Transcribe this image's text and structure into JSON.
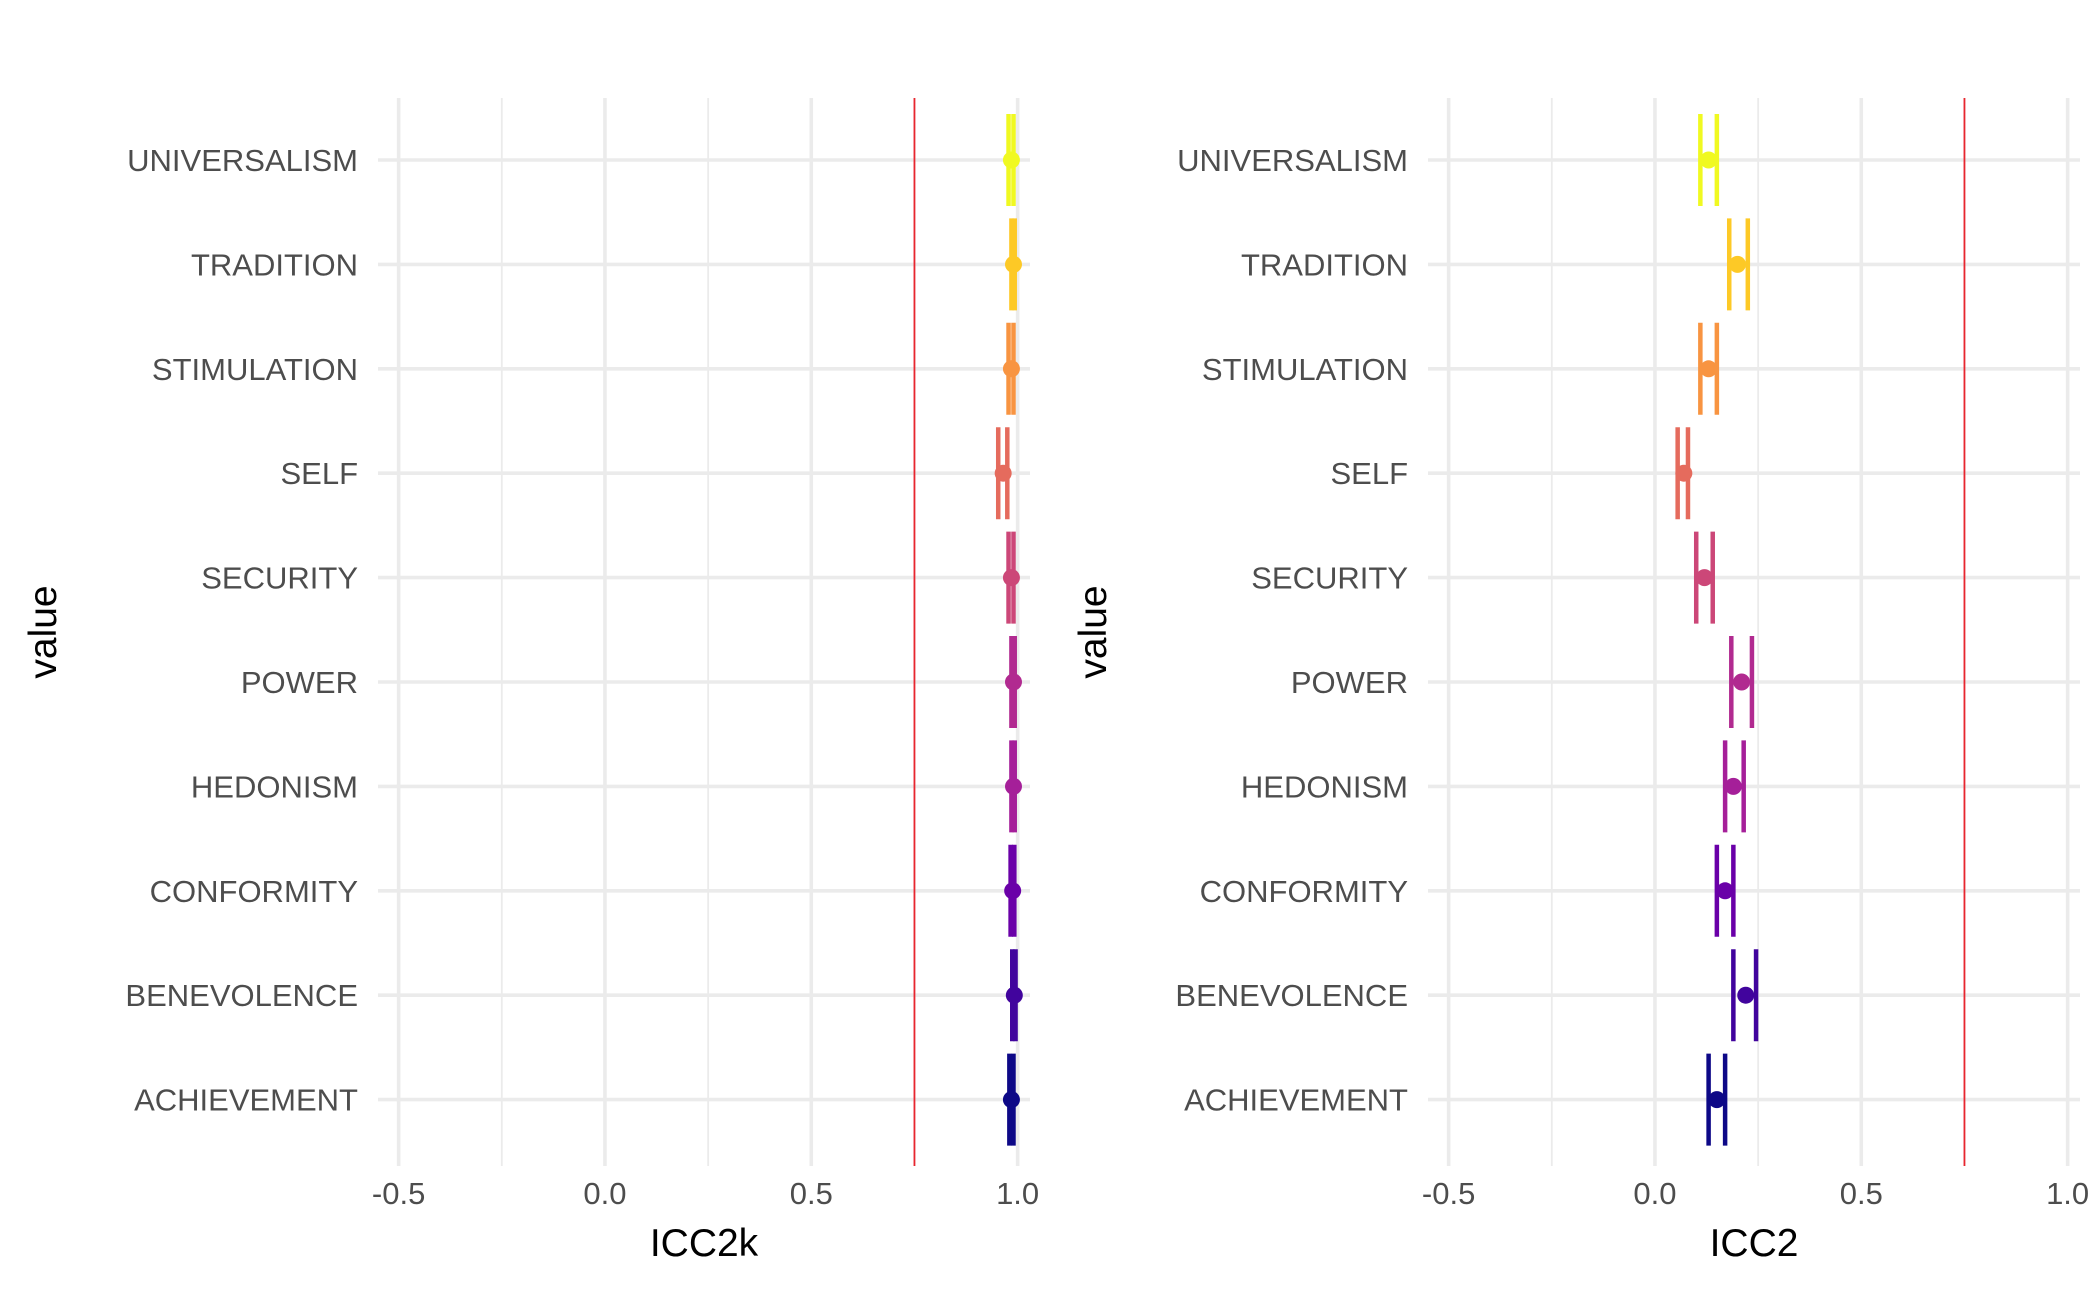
{
  "chart_data": [
    {
      "type": "errorbar",
      "xlabel": "ICC2k",
      "ylabel": "value",
      "xlim": [
        -0.55,
        1.03
      ],
      "x_ticks": [
        -0.5,
        0.0,
        0.5,
        1.0
      ],
      "x_tick_labels": [
        "-0.5",
        "0.0",
        "0.5",
        "1.0"
      ],
      "reference_line": {
        "x": 0.75,
        "color": "#e8262f"
      },
      "grid": true,
      "legend": "none",
      "categories": [
        "UNIVERSALISM",
        "TRADITION",
        "STIMULATION",
        "SELF",
        "SECURITY",
        "POWER",
        "HEDONISM",
        "CONFORMITY",
        "BENEVOLENCE",
        "ACHIEVEMENT"
      ],
      "colors": [
        "#f0f921",
        "#fdc926",
        "#f89441",
        "#e56b5d",
        "#cc4778",
        "#b12a90",
        "#a51f99",
        "#6a00a8",
        "#41049d",
        "#0d0887"
      ],
      "estimates": [
        0.985,
        0.99,
        0.985,
        0.965,
        0.985,
        0.99,
        0.99,
        0.988,
        0.992,
        0.985
      ],
      "lower": [
        0.978,
        0.985,
        0.978,
        0.953,
        0.978,
        0.985,
        0.985,
        0.983,
        0.987,
        0.98
      ],
      "upper": [
        0.99,
        0.993,
        0.99,
        0.975,
        0.99,
        0.993,
        0.993,
        0.992,
        0.995,
        0.99
      ]
    },
    {
      "type": "errorbar",
      "xlabel": "ICC2",
      "ylabel": "value",
      "xlim": [
        -0.55,
        1.03
      ],
      "x_ticks": [
        -0.5,
        0.0,
        0.5,
        1.0
      ],
      "x_tick_labels": [
        "-0.5",
        "0.0",
        "0.5",
        "1.0"
      ],
      "reference_line": {
        "x": 0.75,
        "color": "#e8262f"
      },
      "grid": true,
      "legend": "none",
      "categories": [
        "UNIVERSALISM",
        "TRADITION",
        "STIMULATION",
        "SELF",
        "SECURITY",
        "POWER",
        "HEDONISM",
        "CONFORMITY",
        "BENEVOLENCE",
        "ACHIEVEMENT"
      ],
      "colors": [
        "#f0f921",
        "#fdc926",
        "#f89441",
        "#e56b5d",
        "#cc4778",
        "#b12a90",
        "#a51f99",
        "#6a00a8",
        "#41049d",
        "#0d0887"
      ],
      "estimates": [
        0.13,
        0.2,
        0.13,
        0.07,
        0.12,
        0.21,
        0.19,
        0.17,
        0.22,
        0.15
      ],
      "lower": [
        0.11,
        0.18,
        0.11,
        0.055,
        0.1,
        0.185,
        0.17,
        0.15,
        0.19,
        0.13
      ],
      "upper": [
        0.15,
        0.225,
        0.15,
        0.08,
        0.14,
        0.235,
        0.215,
        0.19,
        0.245,
        0.17
      ]
    }
  ]
}
